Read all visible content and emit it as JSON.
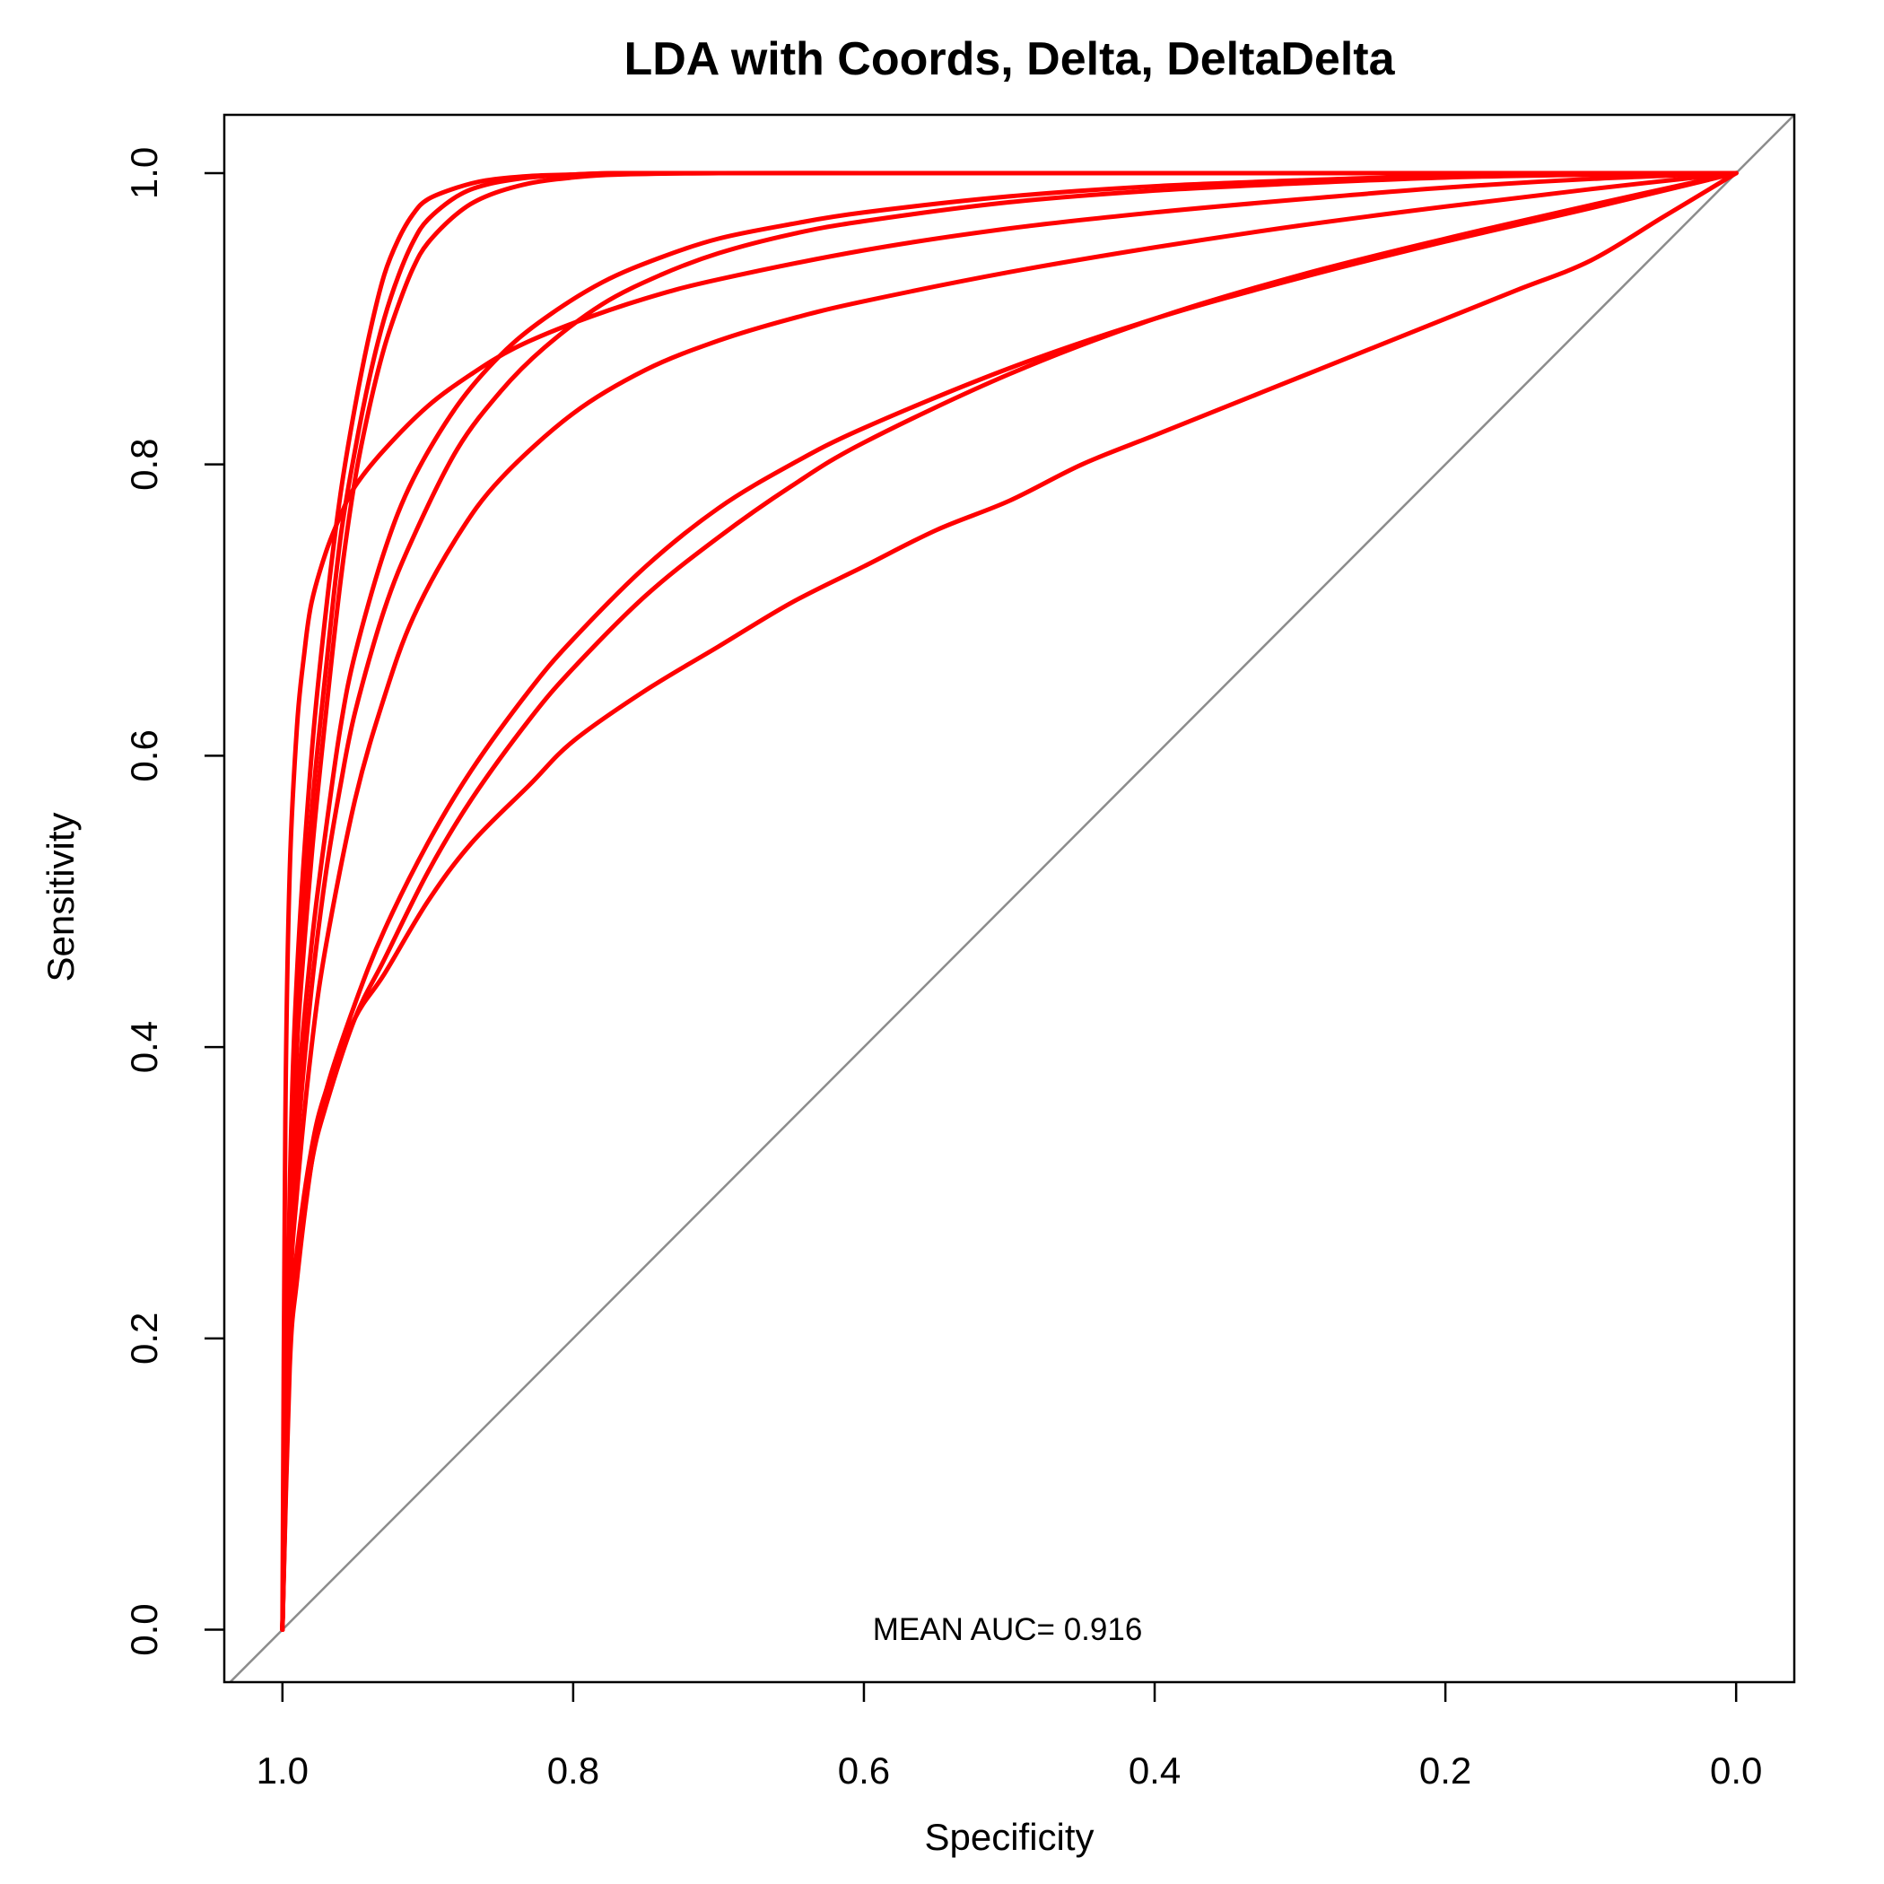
{
  "chart_data": {
    "type": "line",
    "title": "LDA with Coords, Delta, DeltaDelta",
    "xlabel": "Specificity",
    "ylabel": "Sensitivity",
    "xlim": [
      1.04,
      -0.04
    ],
    "ylim": [
      -0.036,
      1.04
    ],
    "x_reversed": true,
    "grid": false,
    "legend": "none",
    "x_ticks": [
      {
        "value": 1.0,
        "label": "1.0"
      },
      {
        "value": 0.8,
        "label": "0.8"
      },
      {
        "value": 0.6,
        "label": "0.6"
      },
      {
        "value": 0.4,
        "label": "0.4"
      },
      {
        "value": 0.2,
        "label": "0.2"
      },
      {
        "value": 0.0,
        "label": "0.0"
      }
    ],
    "y_ticks": [
      {
        "value": 0.0,
        "label": "0.0"
      },
      {
        "value": 0.2,
        "label": "0.2"
      },
      {
        "value": 0.4,
        "label": "0.4"
      },
      {
        "value": 0.6,
        "label": "0.6"
      },
      {
        "value": 0.8,
        "label": "0.8"
      },
      {
        "value": 1.0,
        "label": "1.0"
      }
    ],
    "series_color": "#ff0000",
    "diagonal_color": "#8c8c8c",
    "series": [
      {
        "specificity": [
          1.0,
          0.995,
          0.99,
          0.98,
          0.97,
          0.96,
          0.95,
          0.94,
          0.93,
          0.92,
          0.91,
          0.9,
          0.88,
          0.86,
          0.83,
          0.8,
          0.77,
          0.7,
          0.6,
          0.5,
          0.4,
          0.3,
          0.2,
          0.1,
          0.0
        ],
        "sensitivity": [
          0.0,
          0.3,
          0.45,
          0.6,
          0.7,
          0.78,
          0.84,
          0.89,
          0.93,
          0.955,
          0.972,
          0.982,
          0.99,
          0.995,
          0.998,
          0.999,
          1.0,
          1.0,
          1.0,
          1.0,
          1.0,
          1.0,
          1.0,
          1.0,
          1.0
        ]
      },
      {
        "specificity": [
          1.0,
          0.995,
          0.99,
          0.98,
          0.97,
          0.96,
          0.95,
          0.94,
          0.93,
          0.92,
          0.91,
          0.9,
          0.88,
          0.86,
          0.83,
          0.8,
          0.77,
          0.7,
          0.6,
          0.5,
          0.4,
          0.3,
          0.2,
          0.1,
          0.0
        ],
        "sensitivity": [
          0.0,
          0.27,
          0.42,
          0.56,
          0.66,
          0.75,
          0.81,
          0.86,
          0.9,
          0.93,
          0.953,
          0.968,
          0.984,
          0.992,
          0.997,
          0.999,
          1.0,
          1.0,
          1.0,
          1.0,
          1.0,
          1.0,
          1.0,
          1.0,
          1.0
        ]
      },
      {
        "specificity": [
          1.0,
          0.995,
          0.99,
          0.98,
          0.97,
          0.96,
          0.95,
          0.94,
          0.93,
          0.92,
          0.91,
          0.9,
          0.88,
          0.86,
          0.83,
          0.8,
          0.77,
          0.7,
          0.6,
          0.5,
          0.4,
          0.3,
          0.2,
          0.1,
          0.0
        ],
        "sensitivity": [
          0.0,
          0.26,
          0.4,
          0.53,
          0.63,
          0.72,
          0.79,
          0.84,
          0.88,
          0.91,
          0.935,
          0.952,
          0.972,
          0.984,
          0.993,
          0.997,
          0.999,
          1.0,
          1.0,
          1.0,
          1.0,
          1.0,
          1.0,
          1.0,
          1.0
        ]
      },
      {
        "specificity": [
          1.0,
          0.998,
          0.995,
          0.99,
          0.985,
          0.98,
          0.97,
          0.96,
          0.95,
          0.93,
          0.9,
          0.87,
          0.84,
          0.8,
          0.75,
          0.7,
          0.6,
          0.5,
          0.4,
          0.3,
          0.2,
          0.1,
          0.0
        ],
        "sensitivity": [
          0.0,
          0.35,
          0.52,
          0.62,
          0.67,
          0.705,
          0.74,
          0.765,
          0.785,
          0.81,
          0.84,
          0.862,
          0.88,
          0.897,
          0.914,
          0.927,
          0.947,
          0.962,
          0.973,
          0.982,
          0.99,
          0.996,
          1.0
        ]
      },
      {
        "specificity": [
          1.0,
          0.995,
          0.99,
          0.98,
          0.97,
          0.96,
          0.95,
          0.93,
          0.91,
          0.88,
          0.85,
          0.82,
          0.78,
          0.74,
          0.7,
          0.65,
          0.6,
          0.5,
          0.4,
          0.3,
          0.2,
          0.1,
          0.0
        ],
        "sensitivity": [
          0.0,
          0.26,
          0.36,
          0.47,
          0.55,
          0.62,
          0.67,
          0.74,
          0.79,
          0.84,
          0.875,
          0.9,
          0.925,
          0.942,
          0.955,
          0.965,
          0.973,
          0.984,
          0.991,
          0.995,
          0.998,
          0.999,
          1.0
        ]
      },
      {
        "specificity": [
          1.0,
          0.995,
          0.99,
          0.98,
          0.97,
          0.96,
          0.95,
          0.93,
          0.91,
          0.88,
          0.85,
          0.82,
          0.78,
          0.74,
          0.7,
          0.65,
          0.6,
          0.5,
          0.4,
          0.3,
          0.2,
          0.1,
          0.0
        ],
        "sensitivity": [
          0.0,
          0.24,
          0.33,
          0.44,
          0.52,
          0.58,
          0.63,
          0.7,
          0.75,
          0.81,
          0.85,
          0.88,
          0.91,
          0.93,
          0.945,
          0.958,
          0.967,
          0.98,
          0.988,
          0.993,
          0.997,
          0.999,
          1.0
        ]
      },
      {
        "specificity": [
          1.0,
          0.995,
          0.99,
          0.98,
          0.97,
          0.95,
          0.93,
          0.91,
          0.88,
          0.85,
          0.8,
          0.75,
          0.7,
          0.65,
          0.6,
          0.5,
          0.4,
          0.3,
          0.2,
          0.1,
          0.0
        ],
        "sensitivity": [
          0.0,
          0.22,
          0.3,
          0.4,
          0.47,
          0.57,
          0.64,
          0.695,
          0.75,
          0.79,
          0.835,
          0.865,
          0.885,
          0.9,
          0.912,
          0.932,
          0.949,
          0.964,
          0.977,
          0.989,
          1.0
        ]
      },
      {
        "specificity": [
          1.0,
          0.995,
          0.99,
          0.98,
          0.97,
          0.95,
          0.93,
          0.9,
          0.87,
          0.83,
          0.8,
          0.75,
          0.7,
          0.65,
          0.6,
          0.5,
          0.4,
          0.3,
          0.2,
          0.1,
          0.0
        ],
        "sensitivity": [
          0.0,
          0.18,
          0.24,
          0.32,
          0.37,
          0.43,
          0.48,
          0.54,
          0.59,
          0.645,
          0.68,
          0.73,
          0.77,
          0.8,
          0.825,
          0.866,
          0.9,
          0.928,
          0.953,
          0.976,
          1.0
        ]
      },
      {
        "specificity": [
          1.0,
          0.995,
          0.99,
          0.98,
          0.97,
          0.95,
          0.93,
          0.9,
          0.87,
          0.83,
          0.8,
          0.75,
          0.7,
          0.65,
          0.6,
          0.5,
          0.4,
          0.3,
          0.2,
          0.1,
          0.0
        ],
        "sensitivity": [
          0.0,
          0.19,
          0.25,
          0.32,
          0.36,
          0.42,
          0.46,
          0.52,
          0.57,
          0.625,
          0.66,
          0.71,
          0.75,
          0.785,
          0.815,
          0.862,
          0.9,
          0.93,
          0.955,
          0.978,
          1.0
        ]
      },
      {
        "specificity": [
          1.0,
          0.995,
          0.99,
          0.98,
          0.97,
          0.95,
          0.93,
          0.9,
          0.87,
          0.83,
          0.8,
          0.75,
          0.7,
          0.65,
          0.6,
          0.55,
          0.5,
          0.45,
          0.4,
          0.35,
          0.3,
          0.25,
          0.2,
          0.15,
          0.1,
          0.05,
          0.0
        ],
        "sensitivity": [
          0.0,
          0.2,
          0.26,
          0.33,
          0.37,
          0.42,
          0.45,
          0.5,
          0.54,
          0.58,
          0.61,
          0.645,
          0.675,
          0.705,
          0.73,
          0.755,
          0.775,
          0.8,
          0.82,
          0.84,
          0.86,
          0.88,
          0.9,
          0.92,
          0.94,
          0.97,
          1.0
        ]
      }
    ],
    "annotation": "MEAN AUC= 0.916"
  }
}
